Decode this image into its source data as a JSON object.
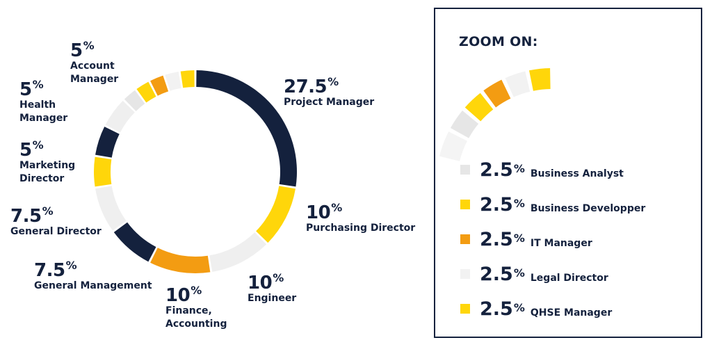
{
  "chart_data": {
    "type": "donut",
    "slices": [
      {
        "name": "Project Manager",
        "value": 27.5,
        "label": "27.5",
        "color": "#14213d"
      },
      {
        "name": "Purchasing Director",
        "value": 10,
        "label": "10",
        "color": "#ffd60a"
      },
      {
        "name": "Engineer",
        "value": 10,
        "label": "10",
        "color": "#efefef"
      },
      {
        "name": "Finance,\nAccounting",
        "value": 10,
        "label": "10",
        "color": "#f39c12"
      },
      {
        "name": "General Management",
        "value": 7.5,
        "label": "7.5",
        "color": "#14213d"
      },
      {
        "name": "General Director",
        "value": 7.5,
        "label": "7.5",
        "color": "#efefef"
      },
      {
        "name": "Marketing\nDirector",
        "value": 5,
        "label": "5",
        "color": "#ffd60a"
      },
      {
        "name": "Health\nManager",
        "value": 5,
        "label": "5",
        "color": "#14213d"
      },
      {
        "name": "Account\nManager",
        "value": 5,
        "label": "5",
        "color": "#efefef"
      },
      {
        "name": "Business Analyst",
        "value": 2.5,
        "label": "2.5",
        "color": "#e6e6e6"
      },
      {
        "name": "Business Developper",
        "value": 2.5,
        "label": "2.5",
        "color": "#ffd60a"
      },
      {
        "name": "IT Manager",
        "value": 2.5,
        "label": "2.5",
        "color": "#f39c12"
      },
      {
        "name": "Legal Director",
        "value": 2.5,
        "label": "2.5",
        "color": "#f2f2f2"
      },
      {
        "name": "QHSE Manager",
        "value": 2.5,
        "label": "2.5",
        "color": "#ffd60a"
      }
    ],
    "percent_sign": "%"
  },
  "zoom": {
    "title": "ZOOM ON:",
    "items": [
      {
        "pct": "2.5",
        "name": "Business Analyst",
        "color": "#e6e6e6"
      },
      {
        "pct": "2.5",
        "name": "Business Developper",
        "color": "#ffd60a"
      },
      {
        "pct": "2.5",
        "name": "IT Manager",
        "color": "#f39c12"
      },
      {
        "pct": "2.5",
        "name": "Legal Director",
        "color": "#f2f2f2"
      },
      {
        "pct": "2.5",
        "name": "QHSE Manager",
        "color": "#ffd60a"
      }
    ]
  }
}
